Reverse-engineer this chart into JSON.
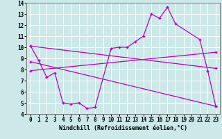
{
  "xlabel": "Windchill (Refroidissement éolien,°C)",
  "bg_color": "#cce8e8",
  "line_color": "#bb00bb",
  "xlim": [
    -0.5,
    23.5
  ],
  "ylim": [
    4,
    14
  ],
  "yticks": [
    4,
    5,
    6,
    7,
    8,
    9,
    10,
    11,
    12,
    13,
    14
  ],
  "xticks": [
    0,
    1,
    2,
    3,
    4,
    5,
    6,
    7,
    8,
    9,
    10,
    11,
    12,
    13,
    14,
    15,
    16,
    17,
    18,
    19,
    20,
    21,
    22,
    23
  ],
  "series1_x": [
    0,
    1,
    2,
    3,
    4,
    5,
    6,
    7,
    8,
    10,
    11,
    12,
    13,
    14,
    15,
    16,
    17,
    18,
    21,
    22,
    23
  ],
  "series1_y": [
    10.1,
    8.8,
    7.3,
    7.7,
    5.0,
    4.9,
    5.0,
    4.5,
    4.6,
    9.9,
    10.0,
    10.0,
    10.5,
    11.0,
    13.0,
    12.6,
    13.6,
    12.1,
    10.7,
    7.9,
    4.7
  ],
  "series2_x": [
    0,
    23
  ],
  "series2_y": [
    10.1,
    8.1
  ],
  "series3_x": [
    0,
    23
  ],
  "series3_y": [
    7.9,
    9.55
  ],
  "series4_x": [
    0,
    23
  ],
  "series4_y": [
    8.7,
    4.7
  ],
  "lw": 0.9,
  "marker_size": 3.5,
  "xlabel_fontsize": 6.0,
  "tick_fontsize": 5.5
}
